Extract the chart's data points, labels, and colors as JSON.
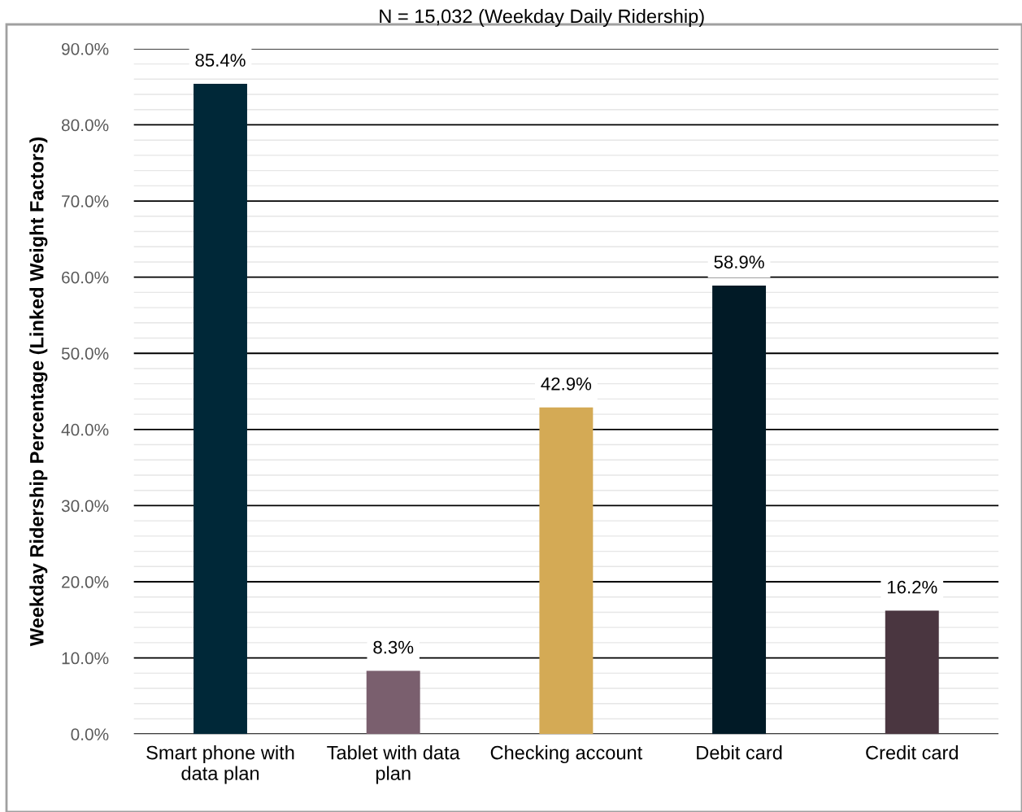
{
  "chart_data": {
    "type": "bar",
    "title": "N = 15,032 (Weekday Daily Ridership)",
    "ylabel": "Weekday Ridership Percentage (Linked Weight Factors)",
    "categories": [
      "Smart phone with\ndata plan",
      "Tablet with data\nplan",
      "Checking account",
      "Debit card",
      "Credit card"
    ],
    "values": [
      85.4,
      8.3,
      42.9,
      58.9,
      16.2
    ],
    "colors": [
      "#002838",
      "#7a5f6e",
      "#d4aa55",
      "#011a26",
      "#4a3640"
    ],
    "value_labels": [
      "85.4%",
      "8.3%",
      "42.9%",
      "58.9%",
      "16.2%"
    ],
    "ylim": [
      0,
      90
    ],
    "yticks": [
      {
        "value": 0,
        "label": "0.0%"
      },
      {
        "value": 2,
        "label": null
      },
      {
        "value": 4,
        "label": null
      },
      {
        "value": 6,
        "label": null
      },
      {
        "value": 8,
        "label": null
      },
      {
        "value": 10,
        "label": "10.0%"
      },
      {
        "value": 12,
        "label": null
      },
      {
        "value": 14,
        "label": null
      },
      {
        "value": 16,
        "label": null
      },
      {
        "value": 18,
        "label": null
      },
      {
        "value": 20,
        "label": "20.0%"
      },
      {
        "value": 22,
        "label": null
      },
      {
        "value": 24,
        "label": null
      },
      {
        "value": 26,
        "label": null
      },
      {
        "value": 28,
        "label": null
      },
      {
        "value": 30,
        "label": "30.0%"
      },
      {
        "value": 32,
        "label": null
      },
      {
        "value": 34,
        "label": null
      },
      {
        "value": 36,
        "label": null
      },
      {
        "value": 38,
        "label": null
      },
      {
        "value": 40,
        "label": "40.0%"
      },
      {
        "value": 42,
        "label": null
      },
      {
        "value": 44,
        "label": null
      },
      {
        "value": 46,
        "label": null
      },
      {
        "value": 48,
        "label": null
      },
      {
        "value": 50,
        "label": "50.0%"
      },
      {
        "value": 52,
        "label": null
      },
      {
        "value": 54,
        "label": null
      },
      {
        "value": 56,
        "label": null
      },
      {
        "value": 58,
        "label": null
      },
      {
        "value": 60,
        "label": "60.0%"
      },
      {
        "value": 62,
        "label": null
      },
      {
        "value": 64,
        "label": null
      },
      {
        "value": 66,
        "label": null
      },
      {
        "value": 68,
        "label": null
      },
      {
        "value": 70,
        "label": "70.0%"
      },
      {
        "value": 72,
        "label": null
      },
      {
        "value": 74,
        "label": null
      },
      {
        "value": 76,
        "label": null
      },
      {
        "value": 78,
        "label": null
      },
      {
        "value": 80,
        "label": "80.0%"
      },
      {
        "value": 82,
        "label": null
      },
      {
        "value": 84,
        "label": null
      },
      {
        "value": 86,
        "label": null
      },
      {
        "value": 88,
        "label": null
      },
      {
        "value": 90,
        "label": "90.0%"
      }
    ],
    "grid": "y",
    "legend": false
  }
}
